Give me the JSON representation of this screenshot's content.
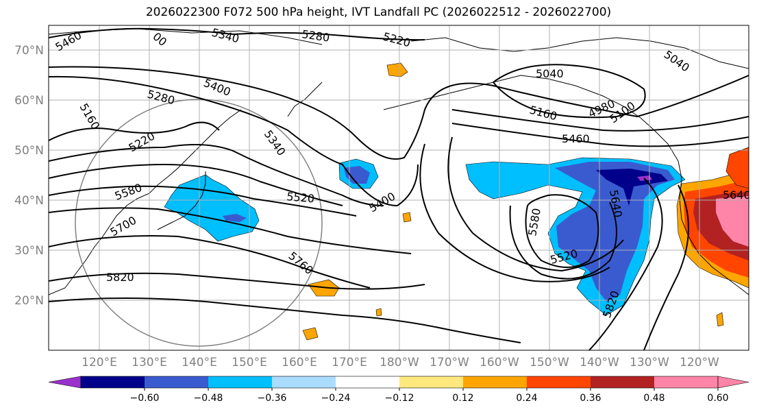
{
  "title": "2026022300 F072 500 hPa height, IVT Landfall PC (2026022512 - 2026022700)",
  "lat_labels": [
    "70°N",
    "60°N",
    "50°N",
    "40°N",
    "30°N",
    "20°N"
  ],
  "lon_labels": [
    "120°E",
    "130°E",
    "140°E",
    "150°E",
    "160°E",
    "170°E",
    "180°W",
    "170°W",
    "160°W",
    "150°W",
    "140°W",
    "130°W",
    "120°W"
  ],
  "colorbar": {
    "ticks": [
      "−0.60",
      "−0.48",
      "−0.36",
      "−0.24",
      "−0.12",
      "0.12",
      "0.24",
      "0.36",
      "0.48",
      "0.60"
    ],
    "colors": [
      "#9932cc",
      "#00008b",
      "#3a5bd0",
      "#00bfff",
      "#aadcff",
      "#ffffff",
      "#ffe97f",
      "#ffa500",
      "#ff4500",
      "#b22222",
      "#ff85a8",
      "#ff85a8"
    ]
  },
  "contour_labels": {
    "c5460a": "5460",
    "c5340a": "5340",
    "c5280a": "5280",
    "c5220a": "5220",
    "c5400a": "5400",
    "c5280b": "5280",
    "c5160a": "5160",
    "c5220b": "5220",
    "c5340b": "5340",
    "c5580a": "5580",
    "c5700a": "5700",
    "c5520a": "5520",
    "c5400b": "5400",
    "c5760a": "5760",
    "c5820a": "5820",
    "c5040a": "5040",
    "c4980a": "4980",
    "c5160b": "5160",
    "c5100a": "5100",
    "c5460b": "5460",
    "c5580b": "5580",
    "c5520b": "5520",
    "c5640a": "5640",
    "c5820b": "5820",
    "c5040b": "5040",
    "c5640b": "5640",
    "c00": "00"
  }
}
